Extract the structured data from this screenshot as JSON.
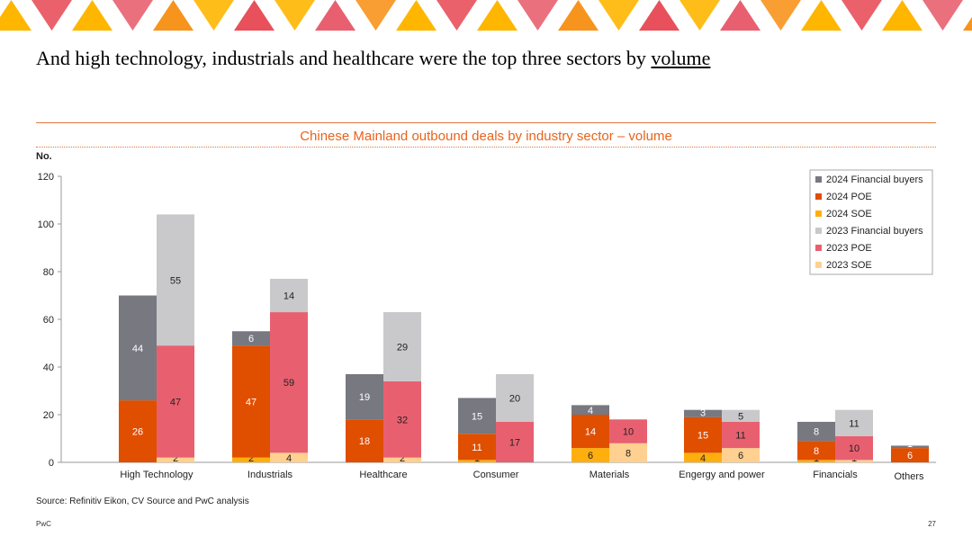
{
  "header": {
    "title_main": "And high technology, industrials and healthcare were the top three sectors by ",
    "title_underlined": "volume"
  },
  "chart_title": "Chinese Mainland outbound deals by industry sector – volume",
  "source": "Source: Refinitiv Eikon, CV Source and PwC analysis",
  "footer": {
    "brand": "PwC",
    "page": "27"
  },
  "colors": {
    "2024 Financial buyers": "#777880",
    "2024 POE": "#e04e00",
    "2024 SOE": "#ffaf0d",
    "2023 Financial buyers": "#c9c8ca",
    "2023 POE": "#e86070",
    "2023 SOE": "#ffd08f"
  },
  "chart_data": {
    "type": "bar",
    "stacked": true,
    "grouped_by_year": true,
    "ylabel": "No.",
    "ylim": [
      0,
      120
    ],
    "yticks": [
      0,
      20,
      40,
      60,
      80,
      100,
      120
    ],
    "grid": false,
    "legend_position": "top-right",
    "categories": [
      "High Technology",
      "Industrials",
      "Healthcare",
      "Consumer",
      "Materials",
      "Engergy and power",
      "Financials",
      "Others"
    ],
    "series": [
      {
        "name": "2024 Financial buyers",
        "group": "2024",
        "values": [
          44,
          6,
          19,
          15,
          4,
          3,
          8,
          1
        ]
      },
      {
        "name": "2024 POE",
        "group": "2024",
        "values": [
          26,
          47,
          18,
          11,
          14,
          15,
          8,
          6
        ]
      },
      {
        "name": "2024 SOE",
        "group": "2024",
        "values": [
          0,
          2,
          0,
          1,
          6,
          4,
          1,
          0
        ]
      },
      {
        "name": "2023 Financial buyers",
        "group": "2023",
        "values": [
          55,
          14,
          29,
          20,
          0,
          5,
          11,
          0
        ]
      },
      {
        "name": "2023 POE",
        "group": "2023",
        "values": [
          47,
          59,
          32,
          17,
          10,
          11,
          10,
          0
        ]
      },
      {
        "name": "2023 SOE",
        "group": "2023",
        "values": [
          2,
          4,
          2,
          0,
          8,
          6,
          1,
          0
        ]
      }
    ]
  }
}
